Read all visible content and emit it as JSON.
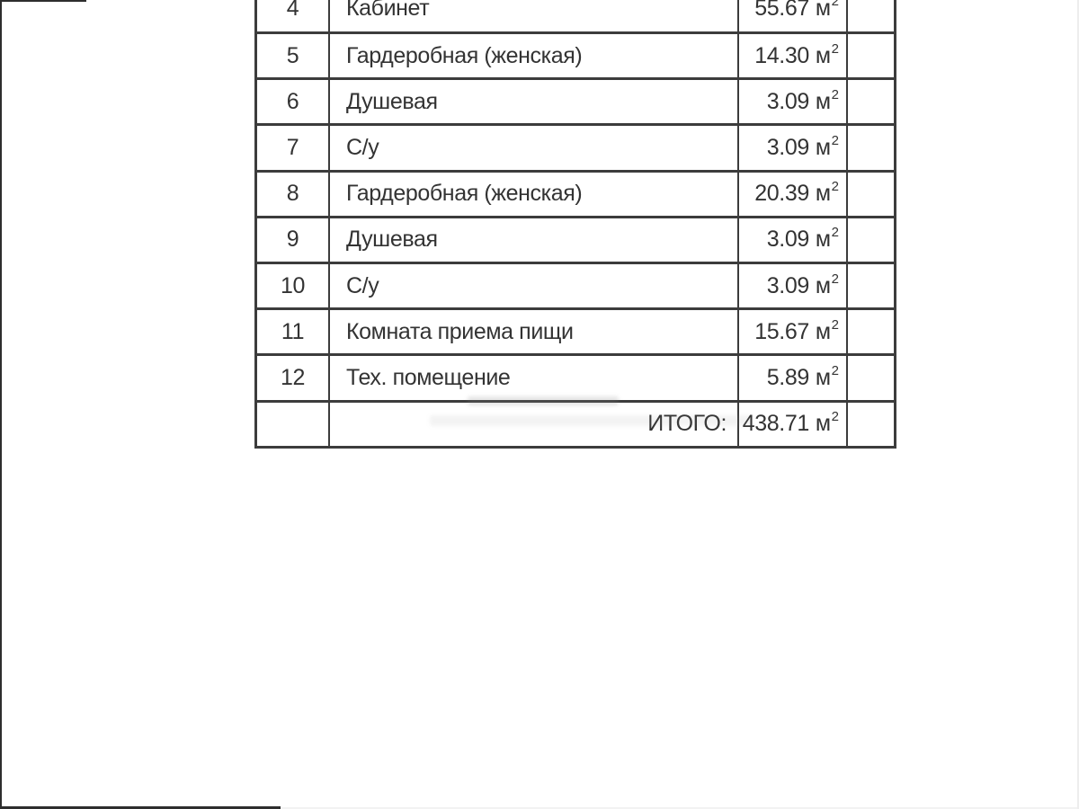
{
  "colors": {
    "background": "#ffffff",
    "table_line": "#3c3c3c",
    "text": "#333333"
  },
  "table": {
    "unit": "м",
    "unit_sup": "2",
    "total_label": "ИТОГО:",
    "total_value": "438.71",
    "rows": [
      {
        "num": "4",
        "name": "Кабинет",
        "area": "55.67"
      },
      {
        "num": "5",
        "name": "Гардеробная (женская)",
        "area": "14.30"
      },
      {
        "num": "6",
        "name": "Душевая",
        "area": "3.09"
      },
      {
        "num": "7",
        "name": "С/у",
        "area": "3.09"
      },
      {
        "num": "8",
        "name": "Гардеробная (женская)",
        "area": "20.39"
      },
      {
        "num": "9",
        "name": "Душевая",
        "area": "3.09"
      },
      {
        "num": "10",
        "name": "С/у",
        "area": "3.09"
      },
      {
        "num": "11",
        "name": "Комната приема пищи",
        "area": "15.67"
      },
      {
        "num": "12",
        "name": "Тех. помещение",
        "area": "5.89"
      }
    ]
  }
}
